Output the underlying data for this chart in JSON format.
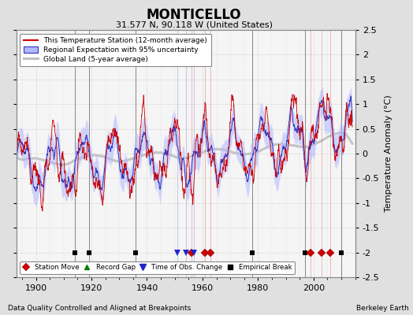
{
  "title": "MONTICELLO",
  "subtitle": "31.577 N, 90.118 W (United States)",
  "ylabel": "Temperature Anomaly (°C)",
  "xlabel_note": "Data Quality Controlled and Aligned at Breakpoints",
  "credit": "Berkeley Earth",
  "year_start": 1893,
  "year_end": 2014,
  "ylim": [
    -2.5,
    2.5
  ],
  "yticks": [
    -2.5,
    -2,
    -1.5,
    -1,
    -0.5,
    0,
    0.5,
    1,
    1.5,
    2,
    2.5
  ],
  "xlim": [
    1893,
    2015
  ],
  "xticks": [
    1900,
    1920,
    1940,
    1960,
    1980,
    2000
  ],
  "bg_color": "#e0e0e0",
  "plot_bg_color": "#f5f5f5",
  "station_move_years": [
    1956,
    1961,
    1963,
    1999,
    2003,
    2006
  ],
  "record_gap_years": [],
  "time_obs_years": [
    1951,
    1954,
    1957
  ],
  "empirical_break_years": [
    1914,
    1919,
    1936,
    1978,
    1997,
    2010
  ],
  "legend_station": "This Temperature Station (12-month average)",
  "legend_regional": "Regional Expectation with 95% uncertainty",
  "legend_global": "Global Land (5-year average)",
  "seed": 17
}
